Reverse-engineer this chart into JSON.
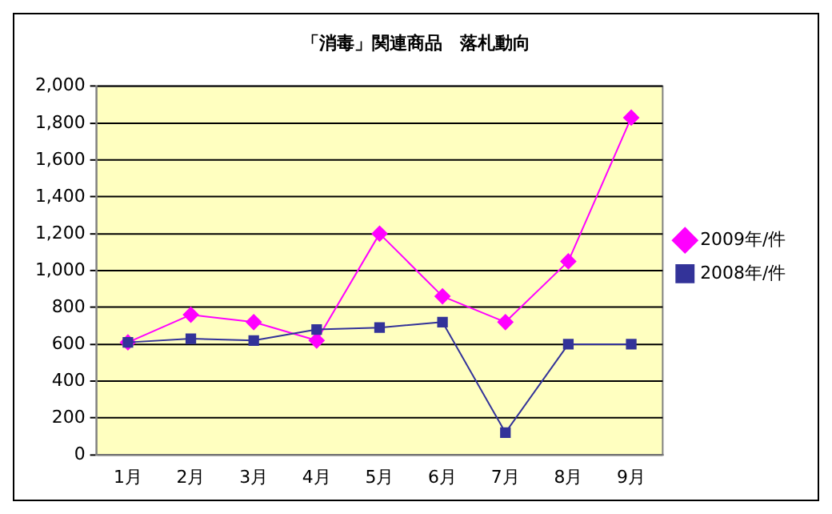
{
  "chart_data": {
    "type": "line",
    "title": "「消毒」関連商品　落札動向",
    "categories": [
      "1月",
      "2月",
      "3月",
      "4月",
      "5月",
      "6月",
      "7月",
      "8月",
      "9月"
    ],
    "series": [
      {
        "name": "2009年/件",
        "color": "#ff00ff",
        "marker": "diamond",
        "values": [
          610,
          760,
          720,
          620,
          1200,
          860,
          720,
          1050,
          1830
        ]
      },
      {
        "name": "2008年/件",
        "color": "#333399",
        "marker": "square",
        "values": [
          610,
          630,
          620,
          680,
          690,
          720,
          120,
          600,
          600
        ]
      }
    ],
    "ylim": [
      0,
      2000
    ],
    "yticks": [
      0,
      {
        "value": 200,
        "label": "200"
      },
      {
        "value": 400,
        "label": "400"
      },
      {
        "value": 600,
        "label": "600"
      },
      {
        "value": 800,
        "label": "800"
      },
      {
        "value": 1000,
        "label": "1,000"
      },
      {
        "value": 1200,
        "label": "1,200"
      },
      {
        "value": 1400,
        "label": "1,400"
      },
      {
        "value": 1600,
        "label": "1,600"
      },
      {
        "value": 1800,
        "label": "1,800"
      },
      {
        "value": 2000,
        "label": "2,000"
      }
    ],
    "grid": "y",
    "legend": "right"
  }
}
